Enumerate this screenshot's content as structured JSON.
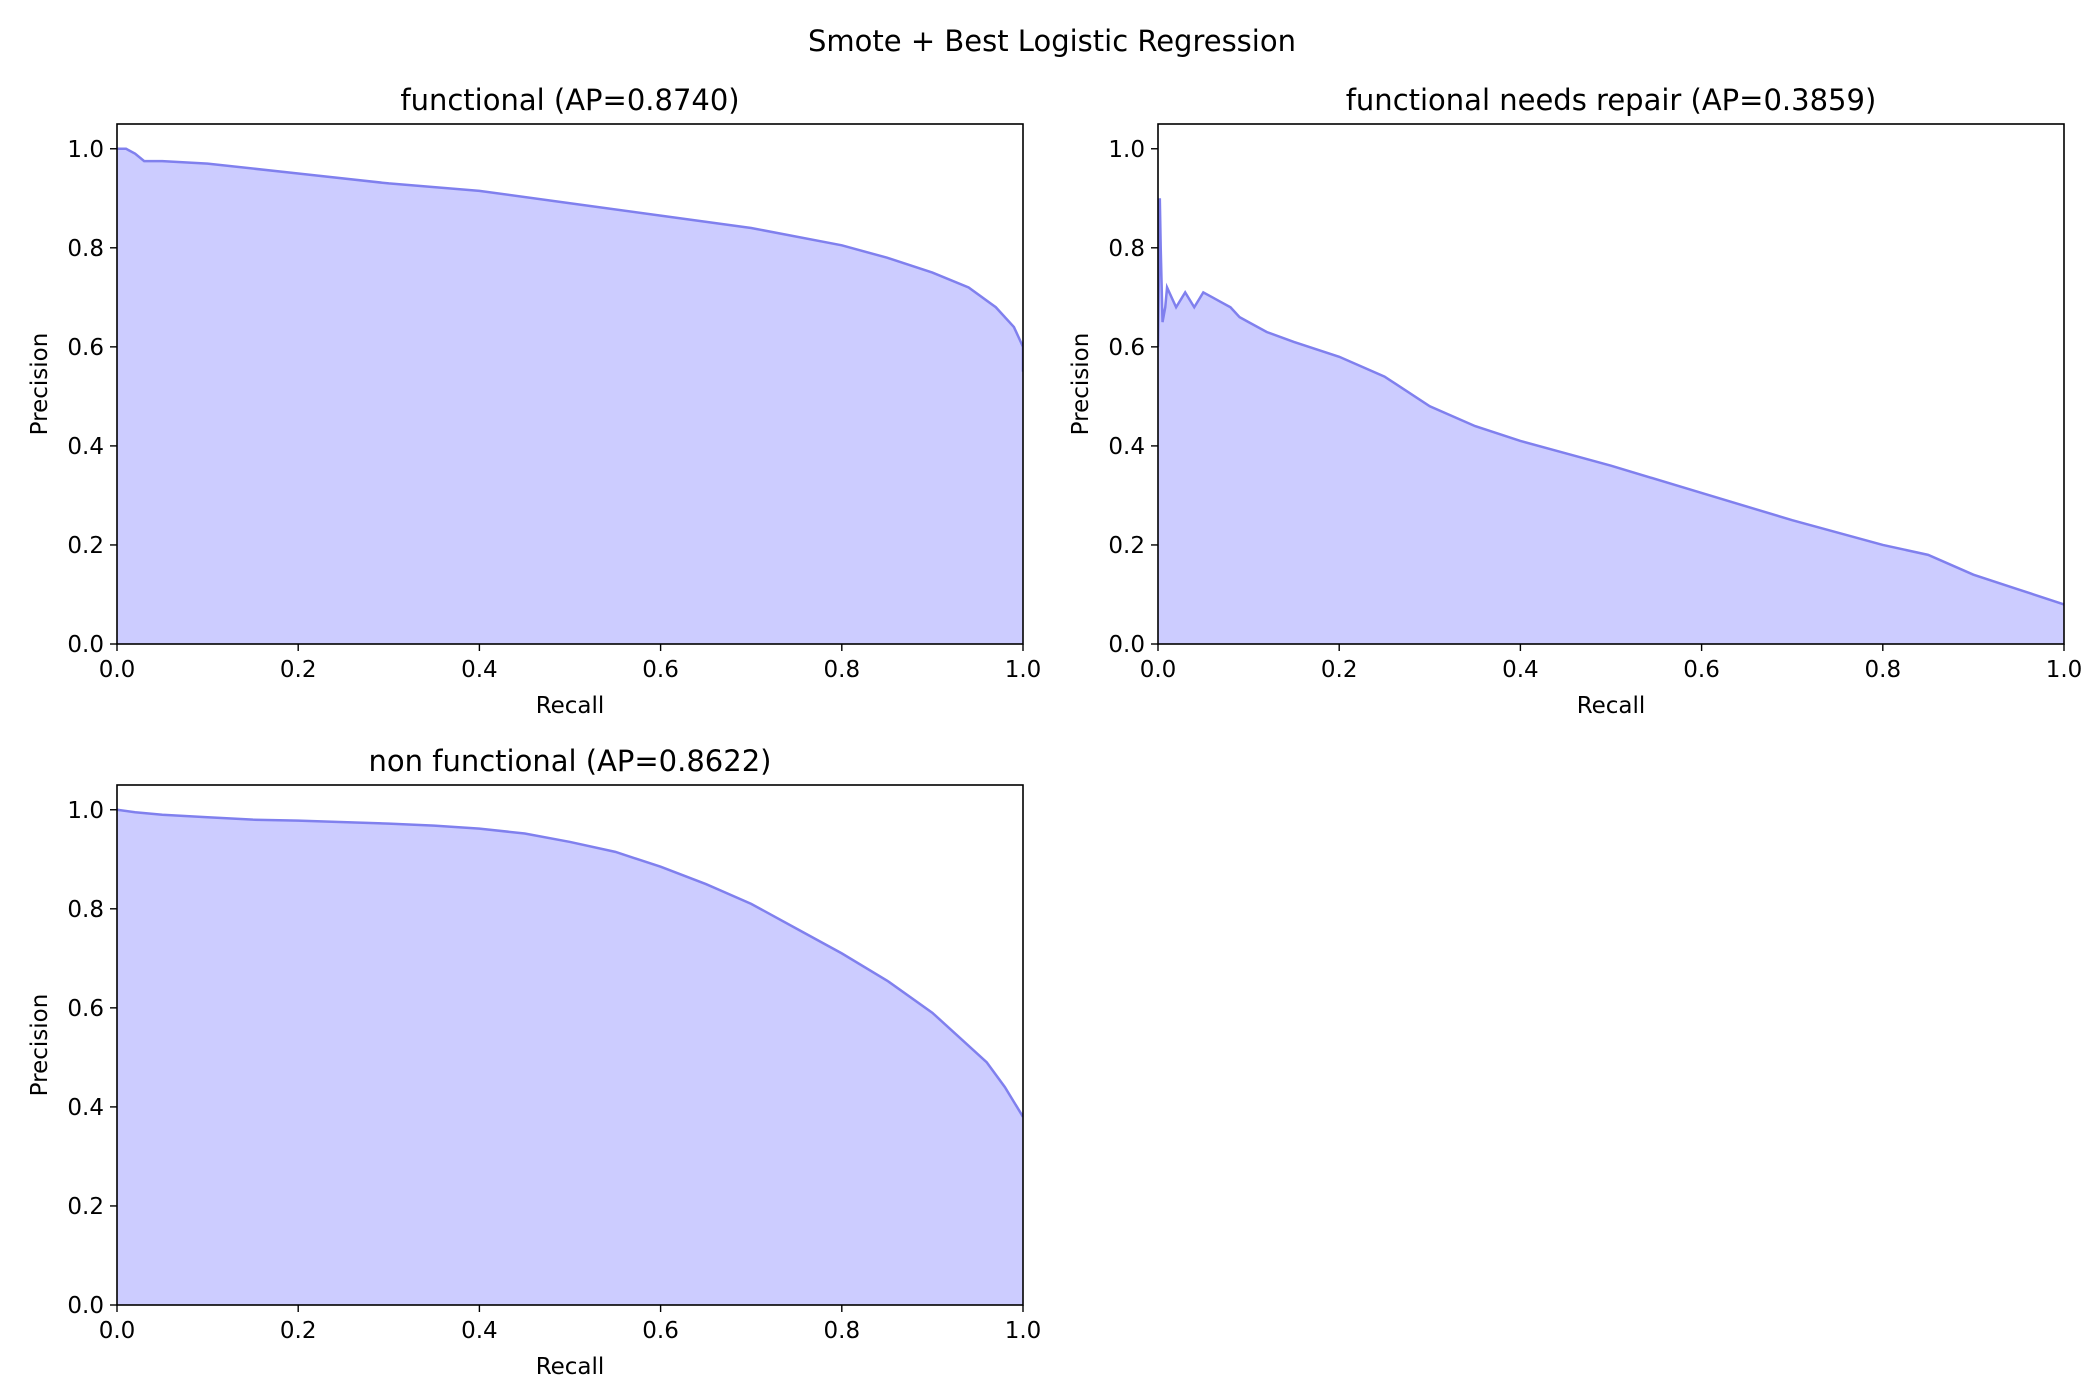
{
  "figure": {
    "title": "Smote + Best Logistic Regression",
    "fill_color": "#ccccff",
    "line_color": "#8080ee"
  },
  "chart_data": [
    {
      "type": "area",
      "title": "functional (AP=0.8740)",
      "xlabel": "Recall",
      "ylabel": "Precision",
      "xlim": [
        0,
        1
      ],
      "ylim": [
        0,
        1.05
      ],
      "xticks": [
        "0.0",
        "0.2",
        "0.4",
        "0.6",
        "0.8",
        "1.0"
      ],
      "yticks": [
        "0.0",
        "0.2",
        "0.4",
        "0.6",
        "0.8",
        "1.0"
      ],
      "grid": false,
      "x": [
        0.0,
        0.01,
        0.02,
        0.03,
        0.05,
        0.1,
        0.2,
        0.3,
        0.4,
        0.5,
        0.6,
        0.7,
        0.8,
        0.85,
        0.9,
        0.94,
        0.97,
        0.99,
        1.0,
        1.0
      ],
      "y": [
        1.0,
        1.0,
        0.99,
        0.975,
        0.975,
        0.97,
        0.95,
        0.93,
        0.915,
        0.89,
        0.865,
        0.84,
        0.805,
        0.78,
        0.75,
        0.72,
        0.68,
        0.64,
        0.6,
        0.55
      ]
    },
    {
      "type": "area",
      "title": "functional needs repair (AP=0.3859)",
      "xlabel": "Recall",
      "ylabel": "Precision",
      "xlim": [
        0,
        1
      ],
      "ylim": [
        0,
        1.05
      ],
      "xticks": [
        "0.0",
        "0.2",
        "0.4",
        "0.6",
        "0.8",
        "1.0"
      ],
      "yticks": [
        "0.0",
        "0.2",
        "0.4",
        "0.6",
        "0.8",
        "1.0"
      ],
      "grid": false,
      "x": [
        0.0,
        0.002,
        0.003,
        0.005,
        0.008,
        0.01,
        0.015,
        0.02,
        0.03,
        0.04,
        0.05,
        0.06,
        0.07,
        0.08,
        0.09,
        0.1,
        0.12,
        0.15,
        0.2,
        0.25,
        0.3,
        0.35,
        0.4,
        0.45,
        0.5,
        0.6,
        0.7,
        0.8,
        0.85,
        0.9,
        0.95,
        1.0
      ],
      "y": [
        0.6,
        0.9,
        0.8,
        0.65,
        0.68,
        0.72,
        0.7,
        0.68,
        0.71,
        0.68,
        0.71,
        0.7,
        0.69,
        0.68,
        0.66,
        0.65,
        0.63,
        0.61,
        0.58,
        0.54,
        0.48,
        0.44,
        0.41,
        0.385,
        0.36,
        0.305,
        0.25,
        0.2,
        0.18,
        0.14,
        0.11,
        0.08
      ]
    },
    {
      "type": "area",
      "title": "non functional (AP=0.8622)",
      "xlabel": "Recall",
      "ylabel": "Precision",
      "xlim": [
        0,
        1
      ],
      "ylim": [
        0,
        1.05
      ],
      "xticks": [
        "0.0",
        "0.2",
        "0.4",
        "0.6",
        "0.8",
        "1.0"
      ],
      "yticks": [
        "0.0",
        "0.2",
        "0.4",
        "0.6",
        "0.8",
        "1.0"
      ],
      "grid": false,
      "x": [
        0.0,
        0.02,
        0.05,
        0.1,
        0.15,
        0.2,
        0.25,
        0.3,
        0.35,
        0.4,
        0.45,
        0.5,
        0.55,
        0.6,
        0.65,
        0.7,
        0.75,
        0.8,
        0.85,
        0.9,
        0.93,
        0.96,
        0.98,
        1.0
      ],
      "y": [
        1.0,
        0.995,
        0.99,
        0.985,
        0.98,
        0.978,
        0.975,
        0.972,
        0.968,
        0.962,
        0.952,
        0.935,
        0.915,
        0.885,
        0.85,
        0.81,
        0.76,
        0.71,
        0.655,
        0.59,
        0.54,
        0.49,
        0.44,
        0.38
      ]
    }
  ]
}
